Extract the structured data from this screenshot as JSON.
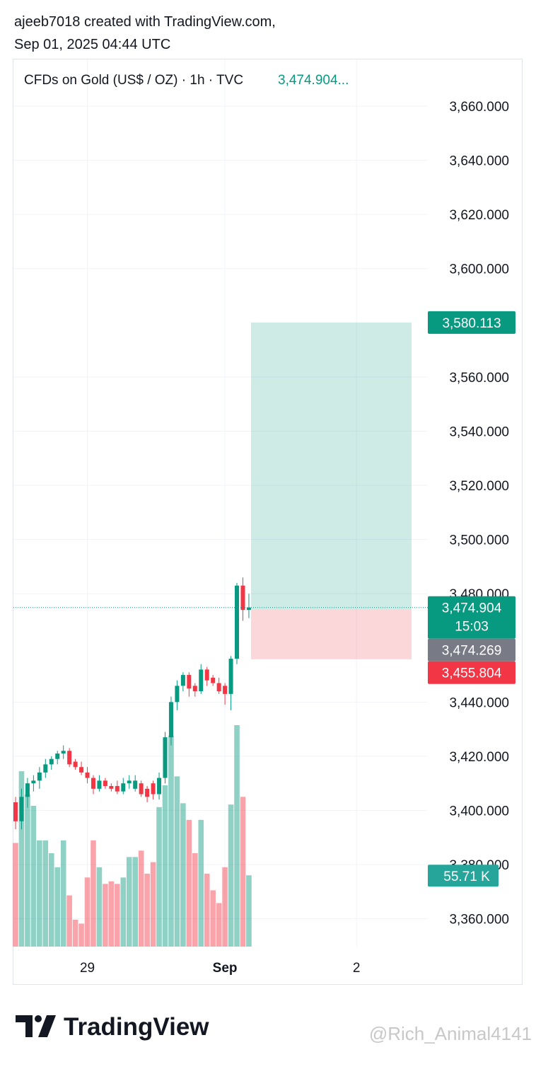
{
  "header": {
    "line1": "ajeeb7018 created with TradingView.com,",
    "line2": "Sep 01, 2025 04:44 UTC"
  },
  "chart_data": {
    "type": "candlestick",
    "title": "CFDs on Gold (US$ / OZ) · 1h · TVC",
    "legend_price": "3,474.904...",
    "categories": [
      null,
      null,
      null,
      null,
      null,
      null,
      null,
      null,
      null,
      null,
      null,
      null,
      "29",
      null,
      null,
      null,
      null,
      null,
      null,
      null,
      null,
      null,
      null,
      null,
      null,
      null,
      null,
      null,
      null,
      null,
      null,
      null,
      null,
      null,
      null,
      "Sep",
      null,
      null,
      null,
      null,
      null,
      null,
      null,
      null,
      null,
      null,
      null,
      null,
      null,
      null,
      null,
      null,
      null,
      null,
      null,
      null,
      null,
      "2",
      null,
      null,
      null,
      null,
      null,
      null,
      null,
      null,
      null,
      null,
      null,
      null,
      null,
      null,
      null,
      null,
      null,
      null,
      null,
      null,
      null,
      null,
      null,
      null,
      null,
      null,
      null
    ],
    "open": [
      3403,
      3396,
      3405,
      3410,
      3411,
      3414,
      3417,
      3419,
      3421,
      3422,
      3418,
      3416,
      3414,
      3412,
      3408,
      3411,
      3409,
      3409,
      3407,
      3410,
      3408,
      3410,
      3408,
      3410,
      3406,
      3412,
      3427,
      3440,
      3446,
      3450,
      3446,
      3444,
      3452,
      3449,
      3447,
      3446,
      3443,
      3456,
      3483,
      3474,
      null,
      null,
      null,
      null,
      null,
      null,
      null,
      null,
      null,
      null,
      null,
      null,
      null,
      null,
      null,
      null,
      null,
      null,
      null,
      null,
      null,
      null,
      null,
      null,
      null,
      null,
      null,
      null,
      null,
      null,
      null,
      null,
      null,
      null,
      null,
      null,
      null,
      null,
      null,
      null,
      null,
      null,
      null,
      null,
      null
    ],
    "high": [
      3405,
      3408,
      3412,
      3413,
      3416,
      3419,
      3420,
      3422,
      3424,
      3423,
      3419,
      3418,
      3416,
      3413,
      3413,
      3412,
      3410,
      3411,
      3412,
      3413,
      3413,
      3411,
      3409,
      3411,
      3414,
      3429,
      3442,
      3448,
      3451,
      3451,
      3447,
      3454,
      3453,
      3450,
      3449,
      3447,
      3457,
      3484,
      3486,
      3480,
      null,
      null,
      null,
      null,
      null,
      null,
      null,
      null,
      null,
      null,
      null,
      null,
      null,
      null,
      null,
      null,
      null,
      null,
      null,
      null,
      null,
      null,
      null,
      null,
      null,
      null,
      null,
      null,
      null,
      null,
      null,
      null,
      null,
      null,
      null,
      null,
      null,
      null,
      null,
      null,
      null,
      null,
      null,
      null,
      null
    ],
    "low": [
      3393,
      3393,
      3401,
      3407,
      3408,
      3412,
      3415,
      3417,
      3419,
      3416,
      3415,
      3413,
      3410,
      3406,
      3407,
      3408,
      3407,
      3406,
      3406,
      3408,
      3407,
      3405,
      3403,
      3404,
      3404,
      3410,
      3424,
      3437,
      3444,
      3442,
      3442,
      3443,
      3446,
      3446,
      3443,
      3439,
      3437,
      3454,
      3470,
      3471,
      null,
      null,
      null,
      null,
      null,
      null,
      null,
      null,
      null,
      null,
      null,
      null,
      null,
      null,
      null,
      null,
      null,
      null,
      null,
      null,
      null,
      null,
      null,
      null,
      null,
      null,
      null,
      null,
      null,
      null,
      null,
      null,
      null,
      null,
      null,
      null,
      null,
      null,
      null,
      null,
      null,
      null,
      null,
      null,
      null
    ],
    "close": [
      3396,
      3405,
      3410,
      3411,
      3414,
      3417,
      3419,
      3421,
      3422,
      3417,
      3416,
      3414,
      3412,
      3408,
      3411,
      3409,
      3408,
      3407,
      3410,
      3411,
      3411,
      3406,
      3405,
      3406,
      3412,
      3427,
      3440,
      3446,
      3450,
      3445,
      3444,
      3452,
      3448,
      3447,
      3444,
      3443,
      3456,
      3483,
      3474,
      3474.904,
      null,
      null,
      null,
      null,
      null,
      null,
      null,
      null,
      null,
      null,
      null,
      null,
      null,
      null,
      null,
      null,
      null,
      null,
      null,
      null,
      null,
      null,
      null,
      null,
      null,
      null,
      null,
      null,
      null,
      null,
      null,
      null,
      null,
      null,
      null,
      null,
      null,
      null,
      null,
      null,
      null,
      null,
      null,
      null,
      null
    ],
    "volume": [
      81,
      137,
      119,
      110,
      83,
      83,
      73,
      62,
      83,
      40,
      21,
      18,
      54,
      83,
      62,
      49,
      51,
      49,
      54,
      70,
      70,
      75,
      57,
      66,
      109,
      126,
      165,
      133,
      112,
      99,
      73,
      99,
      57,
      44,
      34,
      62,
      111,
      173,
      117,
      55.71,
      null,
      null,
      null,
      null,
      null,
      null,
      null,
      null,
      null,
      null,
      null,
      null,
      null,
      null,
      null,
      null,
      null,
      null,
      null,
      null,
      null,
      null,
      null,
      null,
      null,
      null,
      null,
      null,
      null,
      null,
      null,
      null,
      null,
      null,
      null,
      null,
      null,
      null,
      null,
      null,
      null,
      null,
      null,
      null,
      null
    ],
    "volume_last_label": "55.71 K",
    "up_color": "#089981",
    "down_color": "#f23645",
    "ylim": [
      3349.2,
      3677.5
    ],
    "yticks": [
      {
        "value": 3360,
        "label": "3,360.000"
      },
      {
        "value": 3380,
        "label": "3,380.000"
      },
      {
        "value": 3400,
        "label": "3,400.000"
      },
      {
        "value": 3420,
        "label": "3,420.000"
      },
      {
        "value": 3440,
        "label": "3,440.000"
      },
      {
        "value": 3480,
        "label": "3,480.000"
      },
      {
        "value": 3500,
        "label": "3,500.000"
      },
      {
        "value": 3520,
        "label": "3,520.000"
      },
      {
        "value": 3540,
        "label": "3,540.000"
      },
      {
        "value": 3560,
        "label": "3,560.000"
      },
      {
        "value": 3600,
        "label": "3,600.000"
      },
      {
        "value": 3620,
        "label": "3,620.000"
      },
      {
        "value": 3640,
        "label": "3,640.000"
      },
      {
        "value": 3660,
        "label": "3,660.000"
      }
    ],
    "grid": true,
    "last_price": {
      "value": 3474.904,
      "label": "3,474.904",
      "countdown": "15:03"
    },
    "position": {
      "target": {
        "value": 3580.113,
        "label": "3,580.113"
      },
      "entry": {
        "value": 3474.269,
        "label": "3,474.269"
      },
      "stop": {
        "value": 3455.804,
        "label": "3,455.804"
      }
    }
  },
  "footer": {
    "brand": "TradingView",
    "watermark": "@Rich_Animal4141"
  }
}
